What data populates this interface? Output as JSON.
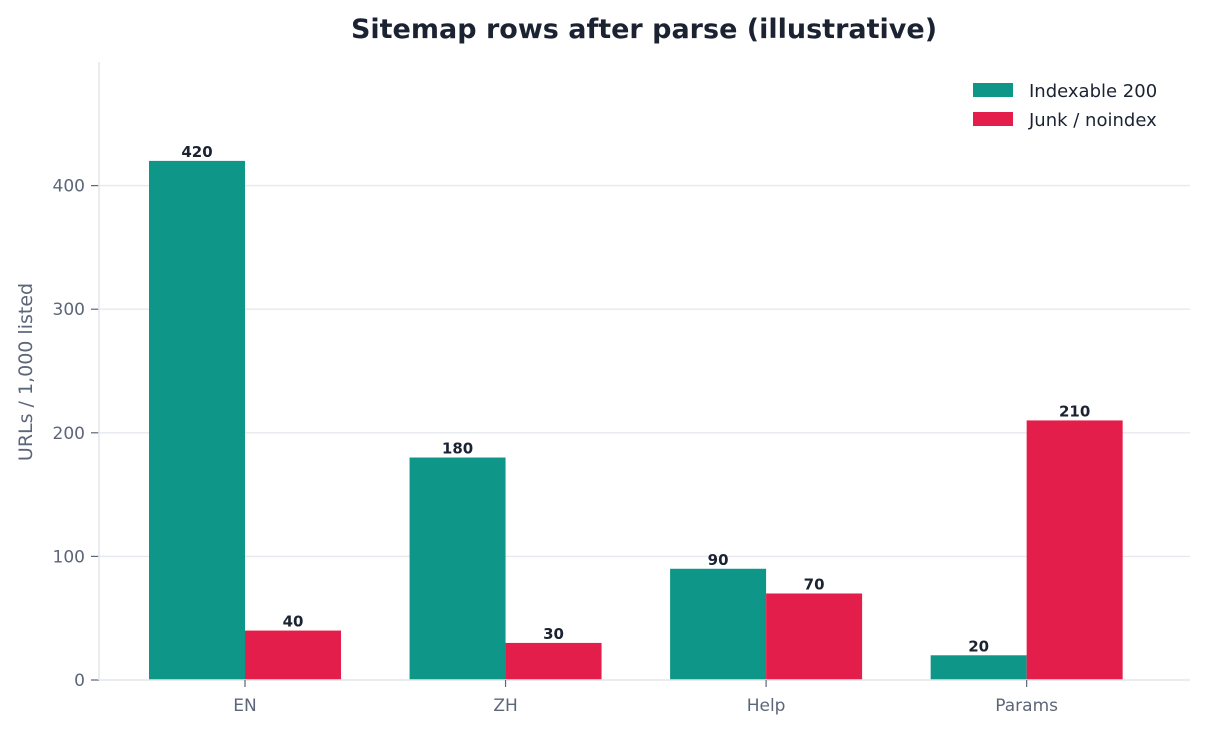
{
  "chart_data": {
    "type": "bar",
    "title": "Sitemap rows after parse (illustrative)",
    "xlabel": "",
    "ylabel": "URLs / 1,000 listed",
    "categories": [
      "EN",
      "ZH",
      "Help",
      "Params"
    ],
    "series": [
      {
        "name": "Indexable 200",
        "values": [
          420,
          180,
          90,
          20
        ],
        "color": "#0e9688"
      },
      {
        "name": "Junk / noindex",
        "values": [
          40,
          30,
          70,
          210
        ],
        "color": "#e31e4a"
      }
    ],
    "ylim": [
      0,
      500
    ],
    "yticks": [
      0,
      100,
      200,
      300,
      400
    ],
    "grid": "horizontal",
    "legend_position": "top-right",
    "data_labels": true
  }
}
